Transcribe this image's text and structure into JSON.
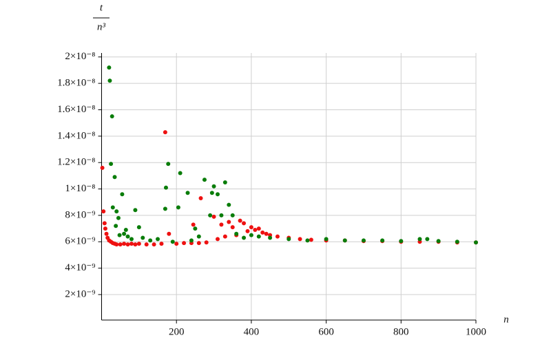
{
  "chart_data": {
    "type": "scatter",
    "xlabel": "n",
    "ylabel": {
      "numerator": "t",
      "denominator": "n³"
    },
    "xlim": [
      0,
      1000
    ],
    "xticks": [
      200,
      400,
      600,
      800,
      1000
    ],
    "ylim": [
      7e-11,
      2.03e-08
    ],
    "yticks": [
      {
        "value": 2e-09,
        "label": "2×10⁻⁹"
      },
      {
        "value": 4e-09,
        "label": "4×10⁻⁹"
      },
      {
        "value": 6e-09,
        "label": "6×10⁻⁹"
      },
      {
        "value": 8e-09,
        "label": "8×10⁻⁹"
      },
      {
        "value": 1e-08,
        "label": "1×10⁻⁸"
      },
      {
        "value": 1.2e-08,
        "label": "1.2×10⁻⁸"
      },
      {
        "value": 1.4e-08,
        "label": "1.4×10⁻⁸"
      },
      {
        "value": 1.6e-08,
        "label": "1.6×10⁻⁸"
      },
      {
        "value": 1.8e-08,
        "label": "1.8×10⁻⁸"
      },
      {
        "value": 2e-08,
        "label": "2×10⁻⁸"
      }
    ],
    "grid": true,
    "series": [
      {
        "color": "#ee1111",
        "x": [
          2,
          5,
          8,
          10,
          13,
          16,
          20,
          25,
          30,
          35,
          40,
          50,
          60,
          70,
          80,
          90,
          100,
          120,
          140,
          160,
          170,
          180,
          200,
          220,
          240,
          245,
          260,
          265,
          280,
          300,
          310,
          320,
          330,
          340,
          350,
          360,
          370,
          380,
          390,
          400,
          410,
          420,
          430,
          440,
          450,
          470,
          500,
          530,
          560,
          600,
          650,
          700,
          750,
          800,
          850,
          900,
          950,
          1000
        ],
        "values": [
          1.16e-08,
          8.3e-09,
          7.4e-09,
          7e-09,
          6.6e-09,
          6.3e-09,
          6.1e-09,
          6e-09,
          5.9e-09,
          5.85e-09,
          5.8e-09,
          5.8e-09,
          5.85e-09,
          5.8e-09,
          5.85e-09,
          5.8e-09,
          5.85e-09,
          5.8e-09,
          5.8e-09,
          5.85e-09,
          1.43e-08,
          6.6e-09,
          5.85e-09,
          5.9e-09,
          5.9e-09,
          7.3e-09,
          5.9e-09,
          9.3e-09,
          5.95e-09,
          7.9e-09,
          6.2e-09,
          7.3e-09,
          6.4e-09,
          7.5e-09,
          7.1e-09,
          6.5e-09,
          7.6e-09,
          7.4e-09,
          6.8e-09,
          7.1e-09,
          6.9e-09,
          7e-09,
          6.7e-09,
          6.6e-09,
          6.5e-09,
          6.4e-09,
          6.3e-09,
          6.2e-09,
          6.15e-09,
          6.1e-09,
          6.1e-09,
          6.05e-09,
          6.05e-09,
          6e-09,
          6e-09,
          6e-09,
          5.95e-09,
          5.95e-09
        ]
      },
      {
        "color": "#0a7d0a",
        "x": [
          20,
          22,
          25,
          28,
          30,
          35,
          38,
          40,
          45,
          48,
          55,
          60,
          65,
          70,
          80,
          90,
          100,
          110,
          130,
          150,
          170,
          172,
          178,
          190,
          205,
          210,
          230,
          240,
          250,
          260,
          275,
          290,
          295,
          300,
          310,
          320,
          330,
          340,
          350,
          360,
          380,
          400,
          420,
          450,
          500,
          550,
          600,
          650,
          700,
          750,
          800,
          850,
          870,
          900,
          950,
          1000
        ],
        "values": [
          1.92e-08,
          1.82e-08,
          1.19e-08,
          1.55e-08,
          8.6e-09,
          1.09e-08,
          7.2e-09,
          8.3e-09,
          7.8e-09,
          6.5e-09,
          9.6e-09,
          6.6e-09,
          6.9e-09,
          6.4e-09,
          6.2e-09,
          8.4e-09,
          7.1e-09,
          6.3e-09,
          6.1e-09,
          6.2e-09,
          8.5e-09,
          1.01e-08,
          1.19e-08,
          6e-09,
          8.6e-09,
          1.12e-08,
          9.7e-09,
          6.1e-09,
          7e-09,
          6.4e-09,
          1.07e-08,
          8e-09,
          9.7e-09,
          1.02e-08,
          9.6e-09,
          8e-09,
          1.05e-08,
          8.8e-09,
          8e-09,
          6.6e-09,
          6.3e-09,
          6.5e-09,
          6.4e-09,
          6.3e-09,
          6.2e-09,
          6.1e-09,
          6.2e-09,
          6.1e-09,
          6.1e-09,
          6.1e-09,
          6.05e-09,
          6.2e-09,
          6.2e-09,
          6.05e-09,
          6e-09,
          5.95e-09
        ]
      }
    ]
  }
}
